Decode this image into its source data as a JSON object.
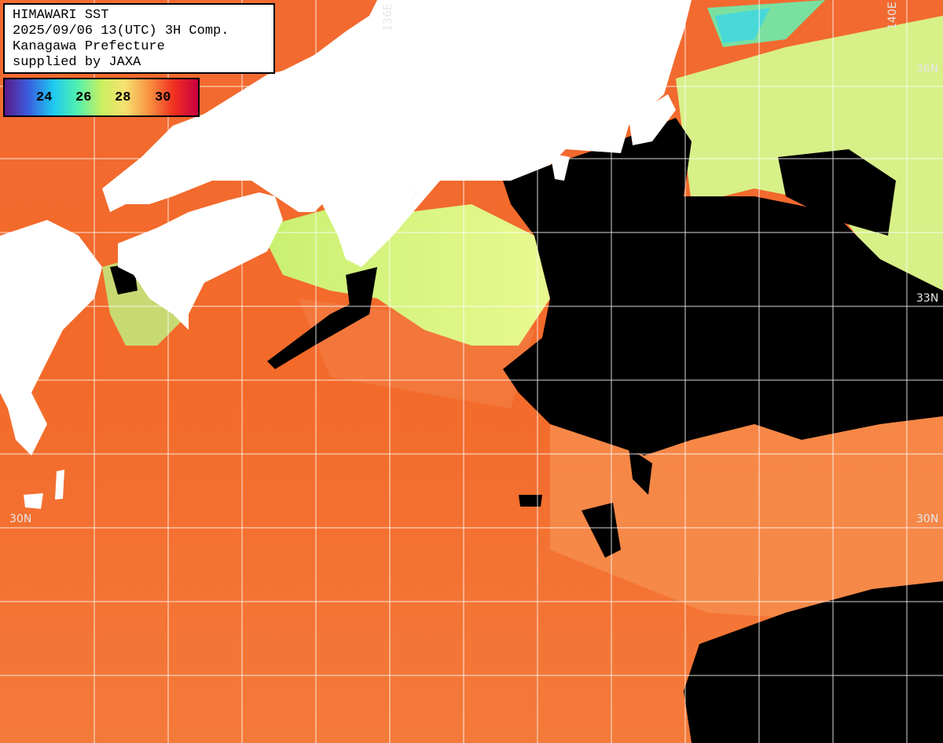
{
  "header": {
    "line1": "HIMAWARI SST",
    "line2": "2025/09/06 13(UTC) 3H Comp.",
    "line3": "Kanagawa Prefecture",
    "line4": "supplied by JAXA"
  },
  "color_scale": {
    "unit": "",
    "ticks": [
      "24",
      "26",
      "28",
      "30"
    ],
    "colors": [
      "#5a1a8a",
      "#3a5fe0",
      "#1ec8f0",
      "#50f0b0",
      "#c8f060",
      "#f8e070",
      "#f89040",
      "#f03020",
      "#c80040"
    ]
  },
  "geo_labels": {
    "lon_136": "136E",
    "lon_140": "140E",
    "lat_36": "36N",
    "lat_33": "33N",
    "lat_30_left": "30N",
    "lat_30_right": "30N"
  },
  "colors": {
    "land": "#ffffff",
    "cloud_mask": "#000000",
    "grid": "#ffffff",
    "sea_warm": "#f06a2a",
    "sea_cool": "#a8f080"
  }
}
